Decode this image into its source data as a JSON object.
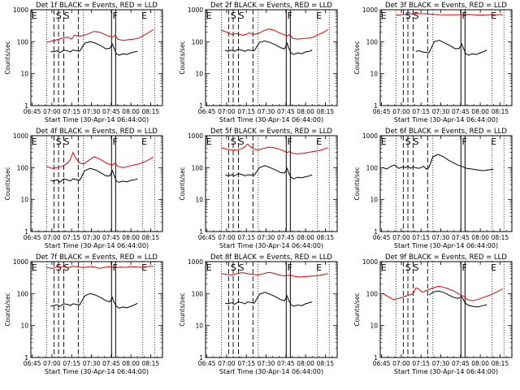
{
  "x_axis": {
    "ticks": [
      "06:45",
      "07:00",
      "07:15",
      "07:30",
      "07:45",
      "08:00",
      "08:15"
    ],
    "start_min": 404,
    "end_min": 504,
    "label": "Start Time (30-Apr-14 06:44:00)"
  },
  "y_axis": {
    "label": "Counts/sec",
    "scale": "log",
    "range": [
      1,
      1000
    ],
    "ticks": [
      "1",
      "10",
      "100",
      "1000"
    ]
  },
  "legend_text": "BLACK = Events, RED = LLD",
  "colors": {
    "events": "#000000",
    "lld": "#e00000"
  },
  "markers": {
    "dotted_min": [
      416,
      444,
      489,
      498
    ],
    "dashed_min": [
      421.5,
      425,
      429,
      440
    ],
    "solid_min": [
      465.3,
      468.4
    ],
    "letters": [
      {
        "text": "E",
        "min": 404.5
      },
      {
        "text": "S",
        "min": 423
      },
      {
        "text": "S",
        "min": 429
      },
      {
        "text": "F",
        "min": 466
      },
      {
        "text": "E",
        "min": 488
      }
    ]
  },
  "chart_data": [
    {
      "type": "line",
      "title": "Det 1f BLACK = Events, RED = LLD",
      "series": [
        {
          "name": "Events",
          "x": [
            419,
            421,
            424,
            426,
            429,
            433,
            434,
            436,
            441,
            445,
            449,
            453,
            457,
            461,
            464,
            466,
            467,
            469,
            471,
            474,
            477,
            480,
            483,
            485
          ],
          "y": [
            50,
            48,
            52,
            45,
            55,
            50,
            48,
            55,
            50,
            90,
            100,
            90,
            75,
            60,
            62,
            85,
            65,
            42,
            38,
            42,
            40,
            45,
            48,
            50
          ]
        },
        {
          "name": "LLD",
          "x": [
            416,
            420,
            424,
            428,
            432,
            435,
            437,
            440,
            444,
            448,
            452,
            456,
            460,
            463,
            466,
            468,
            470,
            474,
            478,
            482,
            486,
            490,
            494,
            497
          ],
          "y": [
            95,
            105,
            115,
            130,
            140,
            120,
            160,
            150,
            155,
            180,
            210,
            200,
            170,
            150,
            140,
            160,
            120,
            110,
            115,
            120,
            130,
            160,
            200,
            240
          ]
        }
      ]
    },
    {
      "type": "line",
      "title": "Det 2f BLACK = Events, RED = LLD",
      "series": [
        {
          "name": "Events",
          "x": [
            419,
            421,
            424,
            426,
            429,
            433,
            434,
            436,
            441,
            445,
            449,
            453,
            457,
            461,
            464,
            466,
            467,
            469,
            471,
            474,
            477,
            480,
            483,
            485
          ],
          "y": [
            55,
            50,
            55,
            50,
            58,
            52,
            50,
            55,
            52,
            95,
            105,
            95,
            80,
            65,
            60,
            90,
            65,
            45,
            40,
            45,
            42,
            48,
            50,
            55
          ]
        },
        {
          "name": "LLD",
          "x": [
            416,
            420,
            424,
            428,
            432,
            435,
            437,
            440,
            444,
            448,
            452,
            456,
            460,
            463,
            466,
            468,
            470,
            474,
            478,
            482,
            486,
            490,
            494,
            497
          ],
          "y": [
            230,
            200,
            170,
            180,
            160,
            170,
            190,
            170,
            180,
            220,
            250,
            230,
            190,
            170,
            150,
            170,
            130,
            120,
            125,
            130,
            140,
            170,
            200,
            240
          ]
        }
      ]
    },
    {
      "type": "line",
      "title": "Det 3f BLACK = Events, RED = LLD",
      "series": [
        {
          "name": "Events",
          "x": [
            431,
            434,
            436,
            441,
            445,
            449,
            453,
            457,
            461,
            464,
            466,
            467,
            469,
            471,
            474,
            477,
            480,
            483,
            485
          ],
          "y": [
            50,
            52,
            48,
            45,
            100,
            110,
            90,
            75,
            60,
            62,
            85,
            65,
            42,
            38,
            42,
            40,
            45,
            50,
            55
          ]
        },
        {
          "name": "LLD",
          "x": [
            416,
            424,
            432,
            440,
            448,
            456,
            464,
            472,
            480,
            488,
            497
          ],
          "y": [
            680,
            720,
            760,
            740,
            700,
            690,
            700,
            710,
            680,
            700,
            700
          ]
        }
      ]
    },
    {
      "type": "line",
      "title": "Det 4f BLACK = Events, RED = LLD",
      "series": [
        {
          "name": "Events",
          "x": [
            419,
            421,
            424,
            426,
            429,
            433,
            434,
            436,
            441,
            445,
            449,
            453,
            457,
            461,
            464,
            466,
            467,
            469,
            471,
            474,
            477,
            480,
            483,
            485
          ],
          "y": [
            40,
            38,
            42,
            35,
            45,
            40,
            38,
            45,
            40,
            80,
            95,
            85,
            70,
            55,
            55,
            80,
            60,
            38,
            35,
            38,
            36,
            40,
            42,
            45
          ]
        },
        {
          "name": "LLD",
          "x": [
            416,
            420,
            424,
            428,
            432,
            434,
            436,
            438,
            441,
            444,
            448,
            452,
            456,
            460,
            463,
            466,
            468,
            470,
            474,
            478,
            482,
            486,
            490,
            494,
            497
          ],
          "y": [
            110,
            95,
            100,
            110,
            140,
            180,
            300,
            200,
            140,
            130,
            170,
            220,
            190,
            150,
            130,
            120,
            140,
            110,
            100,
            110,
            120,
            130,
            150,
            180,
            220
          ]
        }
      ]
    },
    {
      "type": "line",
      "title": "Det 5f BLACK = Events, RED = LLD",
      "series": [
        {
          "name": "Events",
          "x": [
            419,
            421,
            424,
            426,
            429,
            433,
            434,
            436,
            441,
            445,
            449,
            453,
            457,
            461,
            464,
            466,
            467,
            469,
            471,
            474,
            477,
            480,
            483,
            485
          ],
          "y": [
            60,
            55,
            60,
            55,
            65,
            58,
            55,
            60,
            58,
            100,
            115,
            100,
            85,
            70,
            68,
            95,
            70,
            50,
            45,
            50,
            48,
            52,
            55,
            60
          ]
        },
        {
          "name": "LLD",
          "x": [
            416,
            420,
            424,
            428,
            432,
            434,
            436,
            438,
            441,
            444,
            448,
            452,
            456,
            460,
            463,
            466,
            468,
            470,
            474,
            478,
            482,
            486,
            490,
            494,
            497
          ],
          "y": [
            420,
            380,
            350,
            360,
            400,
            450,
            550,
            450,
            380,
            360,
            400,
            440,
            420,
            380,
            340,
            300,
            320,
            280,
            270,
            280,
            300,
            320,
            340,
            380,
            420
          ]
        }
      ]
    },
    {
      "type": "line",
      "title": "Det 6f BLACK = Events, RED = LLD",
      "series": [
        {
          "name": "Events",
          "x": [
            406,
            409,
            412,
            415,
            418,
            421,
            423,
            425,
            427,
            429,
            431,
            433,
            435,
            437,
            439,
            441,
            444,
            448,
            452,
            456,
            460,
            463,
            466,
            468,
            470,
            474,
            478,
            482,
            486,
            490
          ],
          "y": [
            100,
            90,
            110,
            120,
            95,
            105,
            100,
            110,
            95,
            105,
            100,
            95,
            100,
            110,
            90,
            100,
            220,
            260,
            220,
            170,
            140,
            120,
            110,
            100,
            95,
            90,
            85,
            80,
            85,
            90
          ]
        }
      ]
    },
    {
      "type": "line",
      "title": "Det 7f BLACK = Events, RED = LLD",
      "series": [
        {
          "name": "Events",
          "x": [
            419,
            421,
            424,
            426,
            429,
            433,
            434,
            436,
            441,
            445,
            449,
            453,
            457,
            461,
            464,
            466,
            467,
            469,
            471,
            474,
            477,
            480,
            483,
            485
          ],
          "y": [
            40,
            42,
            45,
            40,
            48,
            45,
            42,
            48,
            44,
            85,
            100,
            90,
            75,
            60,
            55,
            75,
            55,
            40,
            35,
            38,
            36,
            40,
            45,
            50
          ]
        },
        {
          "name": "LLD",
          "x": [
            416,
            420,
            424,
            428,
            432,
            436,
            440,
            444,
            448,
            452,
            456,
            460,
            464,
            468,
            472,
            476,
            480,
            484,
            488,
            492,
            497
          ],
          "y": [
            650,
            620,
            680,
            700,
            640,
            720,
            680,
            650,
            700,
            680,
            620,
            660,
            700,
            640,
            680,
            660,
            700,
            680,
            660,
            700,
            720
          ]
        }
      ]
    },
    {
      "type": "line",
      "title": "Det 8f BLACK = Events, RED = LLD",
      "series": [
        {
          "name": "Events",
          "x": [
            419,
            421,
            424,
            426,
            429,
            433,
            434,
            436,
            441,
            445,
            449,
            453,
            457,
            461,
            464,
            466,
            467,
            469,
            471,
            474,
            477,
            480,
            483,
            485
          ],
          "y": [
            50,
            48,
            52,
            46,
            55,
            50,
            48,
            55,
            50,
            95,
            110,
            95,
            80,
            65,
            60,
            85,
            62,
            45,
            40,
            44,
            42,
            48,
            52,
            55
          ]
        },
        {
          "name": "LLD",
          "x": [
            416,
            420,
            424,
            428,
            432,
            436,
            440,
            444,
            448,
            452,
            456,
            460,
            464,
            468,
            472,
            476,
            480,
            484,
            488,
            492,
            497
          ],
          "y": [
            420,
            400,
            380,
            420,
            450,
            420,
            400,
            380,
            420,
            460,
            430,
            380,
            360,
            380,
            340,
            330,
            340,
            350,
            360,
            380,
            420
          ]
        }
      ]
    },
    {
      "type": "line",
      "title": "Det 9f BLACK = Events, RED = LLD",
      "series": [
        {
          "name": "Events",
          "x": [
            441,
            444,
            448,
            452,
            456,
            460,
            463,
            466,
            468,
            470,
            474,
            478,
            482,
            485
          ],
          "y": [
            90,
            110,
            120,
            110,
            90,
            75,
            70,
            80,
            55,
            45,
            40,
            38,
            42,
            45
          ]
        },
        {
          "name": "LLD",
          "x": [
            406,
            410,
            414,
            418,
            422,
            426,
            429,
            431,
            433,
            436,
            440,
            444,
            448,
            452,
            456,
            460,
            464,
            468,
            470,
            474,
            478,
            482,
            486,
            490,
            494,
            497
          ],
          "y": [
            100,
            80,
            65,
            70,
            80,
            90,
            100,
            150,
            140,
            110,
            130,
            150,
            170,
            160,
            140,
            120,
            95,
            80,
            65,
            60,
            65,
            75,
            85,
            100,
            120,
            140
          ]
        }
      ]
    }
  ]
}
